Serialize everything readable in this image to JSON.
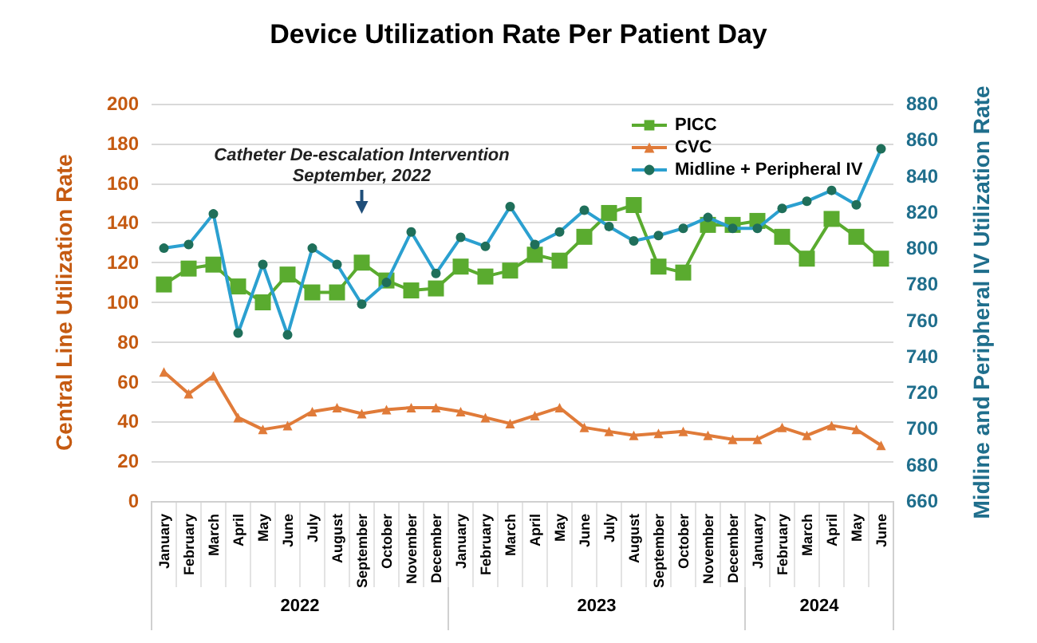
{
  "chart_data": {
    "type": "line",
    "title": "Device Utilization Rate Per Patient Day",
    "ylabel": "Central Line Utilization Rate",
    "y2label": "Midline and Peripheral IV Utilization Rate",
    "categories": [
      "January",
      "February",
      "March",
      "April",
      "May",
      "June",
      "July",
      "August",
      "September",
      "October",
      "November",
      "December",
      "January",
      "February",
      "March",
      "April",
      "May",
      "June",
      "July",
      "August",
      "September",
      "October",
      "November",
      "December",
      "January",
      "February",
      "March",
      "April",
      "May",
      "June"
    ],
    "series": [
      {
        "name": "PICC",
        "color": "#5aab2f",
        "marker": "square",
        "values": [
          109,
          117,
          119,
          108,
          100,
          114,
          105,
          105,
          120,
          111,
          106,
          107,
          118,
          113,
          116,
          124,
          121,
          133,
          145,
          149,
          118,
          115,
          139,
          139,
          141,
          133,
          122,
          142,
          133,
          122
        ]
      },
      {
        "name": "CVC",
        "color": "#e07b39",
        "marker": "triangle",
        "values": [
          65,
          54,
          63,
          42,
          36,
          38,
          45,
          47,
          44,
          46,
          47,
          47,
          45,
          42,
          39,
          43,
          47,
          37,
          35,
          33,
          34,
          35,
          33,
          31,
          31,
          37,
          33,
          38,
          36,
          28
        ]
      },
      {
        "name": "Midline + Peripheral IV",
        "color": "#2ba0d0",
        "marker": "circle",
        "axis": "y2",
        "values": [
          800,
          802,
          819,
          753,
          791,
          752,
          800,
          791,
          769,
          781,
          809,
          786,
          806,
          801,
          823,
          802,
          809,
          821,
          812,
          804,
          807,
          811,
          817,
          811,
          811,
          822,
          826,
          832,
          824,
          855
        ]
      }
    ],
    "ylim": [
      0,
      200
    ],
    "yticks": [
      0,
      20,
      40,
      60,
      80,
      100,
      120,
      140,
      160,
      180,
      200
    ],
    "y2lim": [
      660,
      880
    ],
    "y2ticks": [
      660,
      680,
      700,
      720,
      740,
      760,
      780,
      800,
      820,
      840,
      860,
      880
    ],
    "grid": "y",
    "legend": "top right",
    "line_style": "solid",
    "annotations": [
      "Catheter De-escalation Intervention\nSeptember, 2022",
      "2022",
      "2023",
      "2024"
    ]
  }
}
